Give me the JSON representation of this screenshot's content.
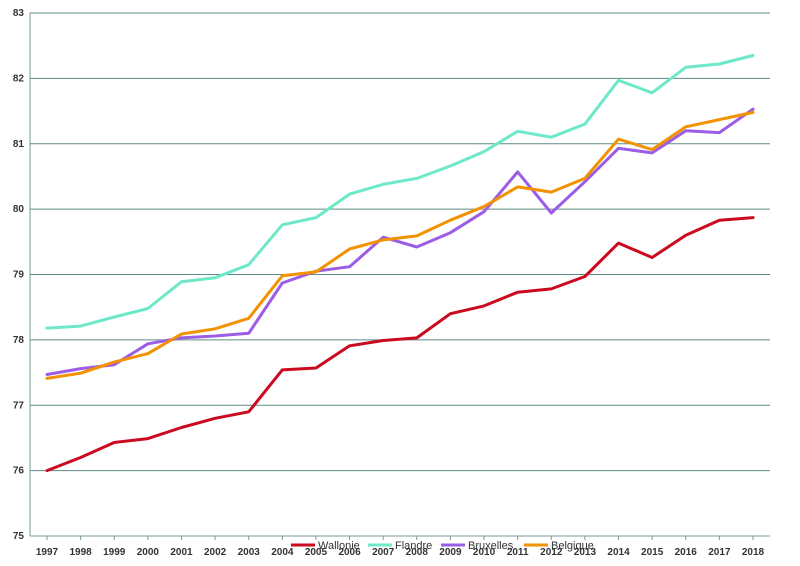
{
  "chart_data": {
    "type": "line",
    "title": "",
    "xlabel": "",
    "ylabel": "",
    "categories": [
      "1997",
      "1998",
      "1999",
      "2000",
      "2001",
      "2002",
      "2003",
      "2004",
      "2005",
      "2006",
      "2007",
      "2008",
      "2009",
      "2010",
      "2011",
      "2012",
      "2013",
      "2014",
      "2015",
      "2016",
      "2017",
      "2018"
    ],
    "ylim": [
      75,
      83
    ],
    "yticks": [
      75,
      76,
      77,
      78,
      79,
      80,
      81,
      82,
      83
    ],
    "grid": true,
    "legend_position": "bottom",
    "series": [
      {
        "name": "Wallonie",
        "color": "#cc0a1f",
        "values": [
          76.0,
          76.2,
          76.43,
          76.49,
          76.66,
          76.8,
          76.9,
          77.54,
          77.57,
          77.91,
          77.99,
          78.03,
          78.4,
          78.52,
          78.73,
          78.78,
          78.97,
          79.48,
          79.26,
          79.6,
          79.83,
          79.87
        ]
      },
      {
        "name": "Flandre",
        "color": "#6de8c8",
        "values": [
          78.18,
          78.21,
          78.35,
          78.48,
          78.89,
          78.95,
          79.15,
          79.76,
          79.87,
          80.23,
          80.38,
          80.47,
          80.66,
          80.88,
          81.19,
          81.1,
          81.3,
          81.97,
          81.78,
          82.17,
          82.22,
          82.35
        ]
      },
      {
        "name": "Bruxelles",
        "color": "#9b5de5",
        "values": [
          77.47,
          77.56,
          77.62,
          77.94,
          78.03,
          78.06,
          78.1,
          78.87,
          79.05,
          79.12,
          79.57,
          79.42,
          79.64,
          79.96,
          80.57,
          79.94,
          80.42,
          80.93,
          80.86,
          81.2,
          81.17,
          81.53
        ]
      },
      {
        "name": "Belgique",
        "color": "#f39200",
        "values": [
          77.41,
          77.49,
          77.66,
          77.79,
          78.09,
          78.17,
          78.33,
          78.98,
          79.04,
          79.39,
          79.53,
          79.59,
          79.83,
          80.04,
          80.34,
          80.26,
          80.47,
          81.07,
          80.91,
          81.26,
          81.37,
          81.48
        ]
      }
    ]
  }
}
